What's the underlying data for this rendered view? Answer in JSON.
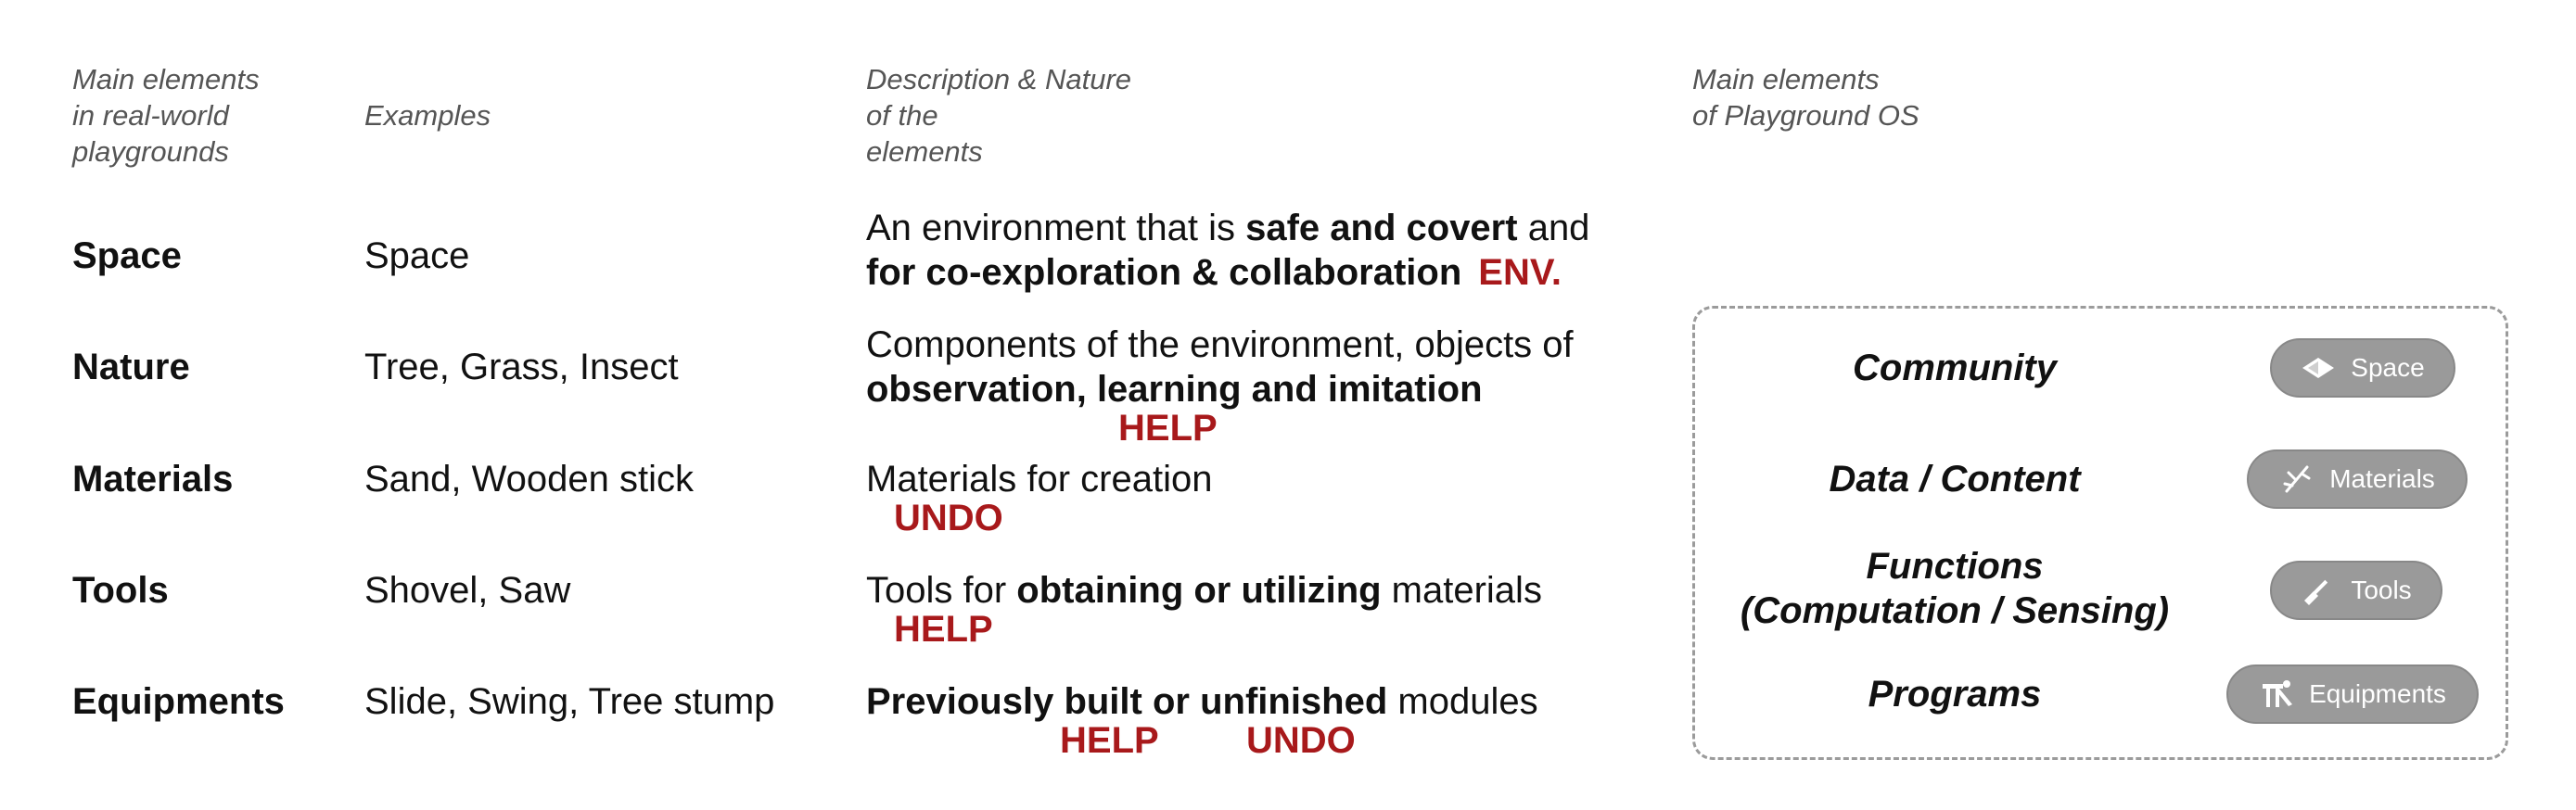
{
  "headers": {
    "real_world": [
      "Main elements",
      "in real-world",
      "playgrounds"
    ],
    "examples": "Examples",
    "description": [
      "Description & Nature",
      "of the",
      "elements"
    ],
    "os": [
      "Main elements",
      "of Playground OS"
    ]
  },
  "rows": [
    {
      "label": "Space",
      "example": "Space",
      "desc_line1": {
        "a": "An environment that is ",
        "b": "safe and covert",
        "c": " and"
      },
      "desc_line2": {
        "b": "for co-exploration & collaboration"
      },
      "tags": [
        "ENV."
      ]
    },
    {
      "label": "Nature",
      "example": "Tree, Grass, Insect",
      "desc_line1": {
        "a": "Components of the environment, objects of"
      },
      "desc_line2": {
        "b": "observation, learning and imitation"
      },
      "tags": [
        "HELP"
      ]
    },
    {
      "label": "Materials",
      "example": "Sand, Wooden stick",
      "desc_line1": {
        "a": "Materials for creation"
      },
      "tags": [
        "UNDO"
      ]
    },
    {
      "label": "Tools",
      "example": "Shovel, Saw",
      "desc_line1": {
        "a": "Tools for ",
        "b": "obtaining or utilizing",
        "c": " materials"
      },
      "tags": [
        "HELP"
      ]
    },
    {
      "label": "Equipments",
      "example": "Slide, Swing, Tree stump",
      "desc_line1": {
        "b": "Previously built or unfinished",
        "c": " modules"
      },
      "tags": [
        "HELP",
        "UNDO"
      ]
    }
  ],
  "os_elements": [
    {
      "name": "Community",
      "pill": "Space",
      "icon": "diamond-icon"
    },
    {
      "name": "Data / Content",
      "pill": "Materials",
      "icon": "stick-icon"
    },
    {
      "name": "Functions",
      "name2": "(Computation / Sensing)",
      "pill": "Tools",
      "icon": "shovel-icon"
    },
    {
      "name": "Programs",
      "pill": "Equipments",
      "icon": "slide-icon"
    }
  ],
  "colors": {
    "tag_red": "#a8191b",
    "pill_gray": "#9a9a9a",
    "header_gray": "#555555"
  }
}
